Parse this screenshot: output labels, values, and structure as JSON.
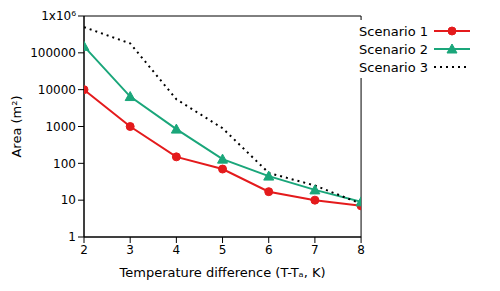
{
  "chart_data": {
    "type": "line",
    "xlabel": "Temperature difference (T-Tₐ, K)",
    "ylabel": "Area (m²)",
    "log": "y",
    "grid": false,
    "legend": "top-right",
    "x": [
      2,
      3,
      4,
      5,
      6,
      7,
      8
    ],
    "xlim": [
      2,
      8
    ],
    "xticks": [
      2,
      3,
      4,
      5,
      6,
      7,
      8
    ],
    "ylim": [
      1,
      1000000
    ],
    "yticks": [
      1,
      10,
      100,
      1000,
      10000,
      100000,
      {
        "value": 1000000,
        "label": "1x10⁶"
      }
    ],
    "series": [
      {
        "name": "Scenario 1",
        "color": "#e41a1c",
        "marker": "circle",
        "line_style": "solid",
        "values": [
          10000,
          1000,
          150,
          70,
          17,
          10,
          7
        ]
      },
      {
        "name": "Scenario 2",
        "color": "#1aa67a",
        "marker": "triangle",
        "line_style": "solid",
        "values": [
          150000,
          6500,
          850,
          130,
          45,
          19,
          9
        ]
      },
      {
        "name": "Scenario 3",
        "color": "#000000",
        "marker": "none",
        "line_style": "dotted",
        "values": [
          500000,
          180000,
          5500,
          900,
          55,
          25,
          8
        ]
      }
    ]
  }
}
